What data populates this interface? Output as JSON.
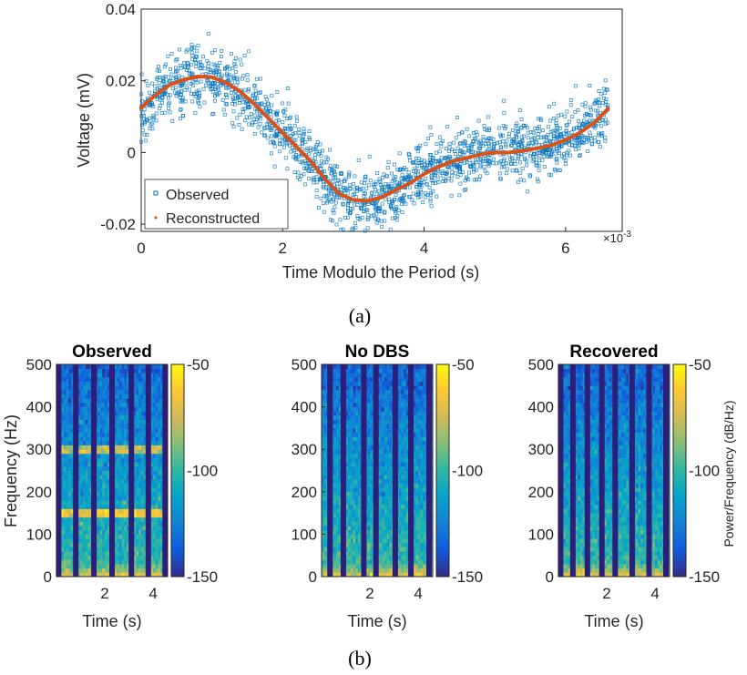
{
  "colors": {
    "observed_marker": "#0072BD",
    "reconstructed_line": "#D95319",
    "parula_low": "#352A87",
    "parula_mid": "#13BEB7",
    "parula_high": "#F9FB0E"
  },
  "captions": {
    "a": "(a)",
    "b": "(b)"
  },
  "chart_data": [
    {
      "type": "scatter",
      "xlabel": "Time Modulo the Period (s)",
      "ylabel": "Voltage (mV)",
      "x_multiplier_label": "×10",
      "x_multiplier_exp": "-3",
      "xlim": [
        0,
        0.0068
      ],
      "ylim": [
        -0.022,
        0.04
      ],
      "xticks": [
        0,
        2,
        4,
        6
      ],
      "yticks": [
        {
          "value": 0.04,
          "label": "0.04"
        },
        {
          "value": 0.02,
          "label": "0.02"
        },
        {
          "value": 0,
          "label": "0"
        },
        {
          "value": -0.02,
          "label": "-0.02"
        }
      ],
      "grid": false,
      "legend_position": "bottom-left",
      "series": [
        {
          "name": "Observed",
          "style": "square markers",
          "approx_noise_std_mV": 0.0042,
          "approx_point_count": 1800,
          "follows_curve": "Reconstructed"
        },
        {
          "name": "Reconstructed",
          "style": "line",
          "x": [
            0,
            0.0002,
            0.0004,
            0.0006,
            0.0008,
            0.001,
            0.0012,
            0.0014,
            0.0016,
            0.0018,
            0.002,
            0.0022,
            0.0024,
            0.0026,
            0.0028,
            0.003,
            0.0032,
            0.0034,
            0.0036,
            0.0038,
            0.004,
            0.0042,
            0.0044,
            0.0046,
            0.0048,
            0.005,
            0.0052,
            0.0054,
            0.0056,
            0.0058,
            0.006,
            0.0062,
            0.0064,
            0.0066
          ],
          "y": [
            0.0125,
            0.016,
            0.0188,
            0.0203,
            0.0212,
            0.021,
            0.0195,
            0.017,
            0.0135,
            0.0095,
            0.0055,
            0.0015,
            -0.0025,
            -0.0075,
            -0.0115,
            -0.0132,
            -0.0135,
            -0.0125,
            -0.0105,
            -0.0085,
            -0.006,
            -0.004,
            -0.0025,
            -0.0015,
            -0.0005,
            0.0,
            0.0,
            0.0005,
            0.0012,
            0.002,
            0.0035,
            0.0055,
            0.0082,
            0.0122
          ]
        }
      ]
    },
    {
      "type": "heatmap",
      "title": "Observed",
      "ylabel": "Frequency (Hz)",
      "xlabel": "Time (s)",
      "xlim": [
        0,
        4.6
      ],
      "ylim": [
        0,
        500
      ],
      "xticks": [
        2,
        4
      ],
      "yticks": [
        0,
        100,
        200,
        300,
        400,
        500
      ],
      "colorbar": {
        "min": -150,
        "max": -50,
        "ticks": [
          -50,
          -100,
          -150
        ],
        "label": ""
      },
      "bright_bands_hz": [
        150,
        300
      ],
      "dark_stripes_s": [
        0.09,
        0.8,
        1.55,
        2.3,
        3.1,
        3.8,
        4.5
      ]
    },
    {
      "type": "heatmap",
      "title": "No DBS",
      "xlabel": "Time (s)",
      "xlim": [
        0,
        4.6
      ],
      "ylim": [
        0,
        500
      ],
      "xticks": [
        2,
        4
      ],
      "yticks": [
        0,
        100,
        200,
        300,
        400,
        500
      ],
      "colorbar": {
        "min": -150,
        "max": -50,
        "ticks": [
          -50,
          -100,
          -150
        ],
        "label": ""
      },
      "bright_bands_hz": [],
      "dark_stripes_s": [
        0.35,
        0.9,
        1.75,
        2.25,
        3.05,
        3.7,
        4.45
      ]
    },
    {
      "type": "heatmap",
      "title": "Recovered",
      "xlabel": "Time (s)",
      "xlim": [
        0,
        4.6
      ],
      "ylim": [
        0,
        500
      ],
      "xticks": [
        2,
        4
      ],
      "yticks": [
        0,
        100,
        200,
        300,
        400,
        500
      ],
      "colorbar": {
        "min": -150,
        "max": -50,
        "ticks": [
          -50,
          -100,
          -150
        ],
        "label": "Power/Frequency (dB/Hz)"
      },
      "bright_bands_hz": [],
      "dark_stripes_s": [
        0.09,
        0.6,
        1.2,
        1.8,
        2.35,
        3.05,
        3.75,
        4.45
      ]
    }
  ]
}
